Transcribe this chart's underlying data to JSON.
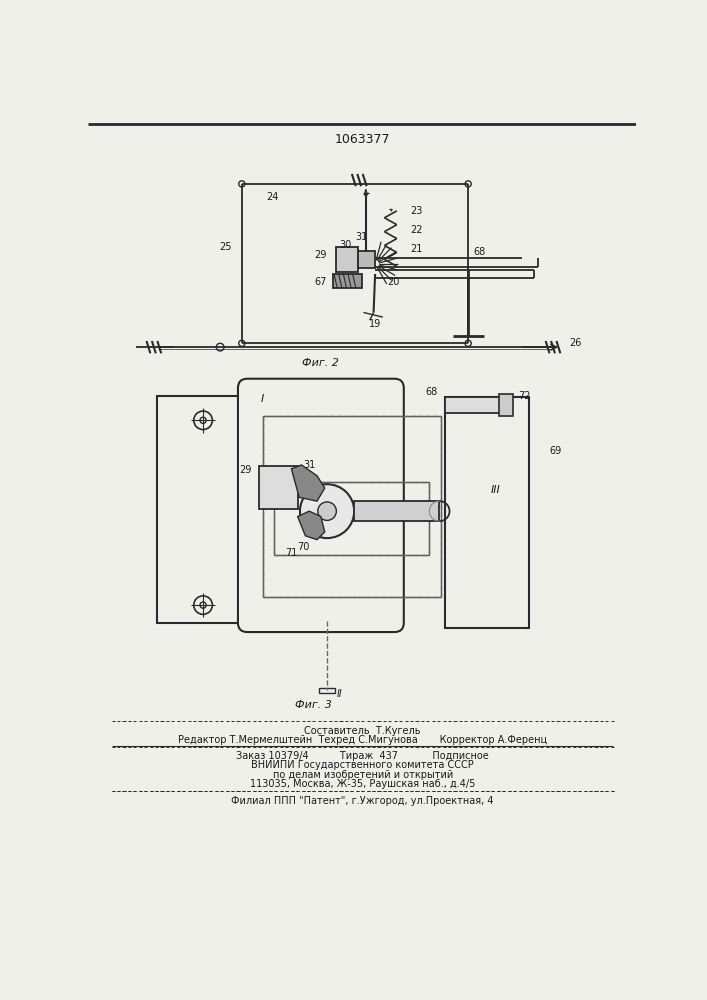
{
  "patent_number": "1063377",
  "fig2_label": "Фиг. 2",
  "fig3_label": "Фиг. 3",
  "footer_line1": "Составитель  Т.Кугель",
  "footer_line2": "Редактор Т.Мермелштейн  Техред С.Мигунова       Корректор А.Ференц",
  "footer_line3": "Заказ 10379/4          Тираж  437           Подписное",
  "footer_line4": "ВНИИПИ Государственного комитета СССР",
  "footer_line5": "по делам изобретений и открытий",
  "footer_line6": "113035, Москва, Ж-35, Раушская наб., д.4/5",
  "footer_line7": "Филиал ППП \"Патент\", г.Ужгород, ул.Проектная, 4",
  "bg_color": "#f0f0eb",
  "line_color": "#2a2a2a",
  "text_color": "#1a1a1a"
}
